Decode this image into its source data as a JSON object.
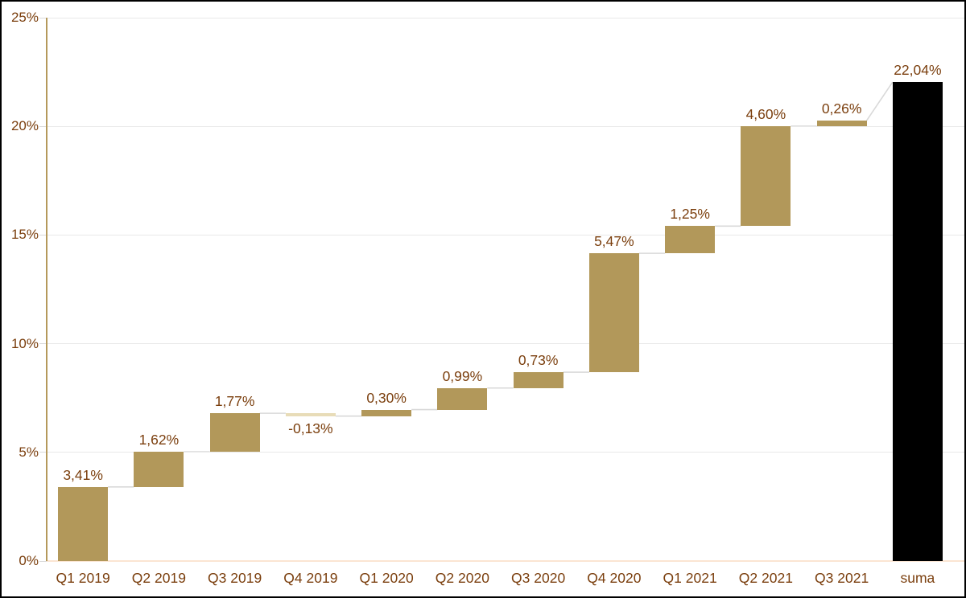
{
  "chart_data": {
    "type": "bar",
    "subtype": "waterfall",
    "title": "",
    "xlabel": "",
    "ylabel": "",
    "categories": [
      "Q1 2019",
      "Q2 2019",
      "Q3 2019",
      "Q4 2019",
      "Q1 2020",
      "Q2 2020",
      "Q3 2020",
      "Q4 2020",
      "Q1 2021",
      "Q2 2021",
      "Q3 2021",
      "suma"
    ],
    "values": [
      3.41,
      1.62,
      1.77,
      -0.13,
      0.3,
      0.99,
      0.73,
      5.47,
      1.25,
      4.6,
      0.26,
      22.04
    ],
    "labels": [
      "3,41%",
      "1,62%",
      "1,77%",
      "-0,13%",
      "0,30%",
      "0,99%",
      "0,73%",
      "5,47%",
      "1,25%",
      "4,60%",
      "0,26%",
      "22,04%"
    ],
    "roles": [
      "delta",
      "delta",
      "delta",
      "delta",
      "delta",
      "delta",
      "delta",
      "delta",
      "delta",
      "delta",
      "delta",
      "total"
    ],
    "ylim": [
      0,
      25
    ],
    "ytick_values": [
      0,
      5,
      10,
      15,
      20,
      25
    ],
    "ytick_labels": [
      "0%",
      "5%",
      "10%",
      "15%",
      "20%",
      "25%"
    ],
    "grid": true,
    "legend": false,
    "colors": {
      "increase_bar": "#B2985A",
      "decrease_bar": "#E8DCB8",
      "total_bar": "#000000",
      "connector": "#D9D9D9",
      "gridline": "#E9E9E9",
      "tick_mark": "#D9D9D9",
      "y_axis_line": "#B5995B",
      "x_axis_line": "#FBE5D2",
      "text": "#7B3F0E",
      "background": "#FFFFFF"
    }
  }
}
